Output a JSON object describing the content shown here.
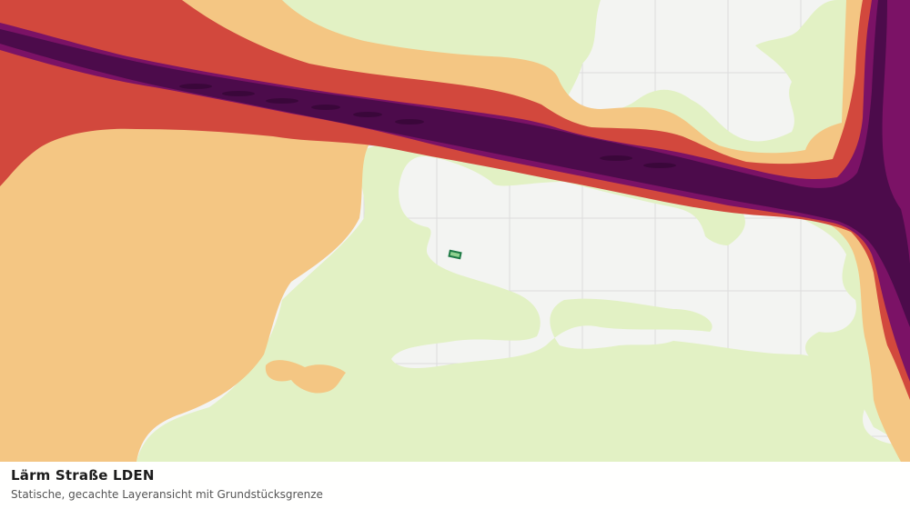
{
  "layer": {
    "title": "Lärm Straße LDEN",
    "subtitle": "Statische, gecachte Layeransicht mit Grundstücksgrenze"
  },
  "colors": {
    "background": "#f3f4f2",
    "grid": "#dcdcdc",
    "green_band": "#e2f1c4",
    "orange_band": "#f4c683",
    "red_band": "#d2483d",
    "magenta_band": "#7b1266",
    "purple_band": "#4c0b4b",
    "parcel": "#1e7a46"
  },
  "map": {
    "noise_bands": [
      "green",
      "orange",
      "red",
      "magenta",
      "dark-purple"
    ],
    "road_corridors": [
      "upper-horizontal",
      "right-vertical"
    ],
    "parcel_marker": "property-boundary"
  }
}
